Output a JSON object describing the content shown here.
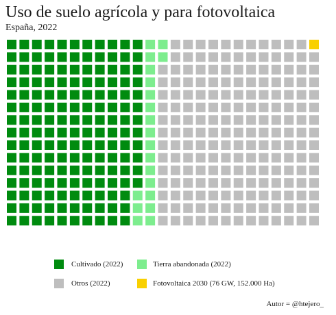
{
  "chart_data": {
    "type": "waffle",
    "title": "Uso de suelo agrícola y para fotovoltaica",
    "subtitle": "España, 2022",
    "unit_count": 375,
    "columns": 25,
    "rows": 15,
    "fill_order": "column-major, top-to-bottom, left-to-right",
    "series": [
      {
        "name": "Cultivado (2022)",
        "cells": 162,
        "color": "#008b0f"
      },
      {
        "name": "Tierra abandonada (2022)",
        "cells": 20,
        "color": "#7ded8e"
      },
      {
        "name": "Otros (2022)",
        "cells": 192,
        "color": "#bebebe"
      },
      {
        "name": "Fotovoltaica 2030 (76 GW, 152.000 Ha)",
        "cells": 1,
        "color": "#f9d000"
      }
    ],
    "legend_placement": "bottom",
    "caption": "Autor = @htejero_"
  }
}
